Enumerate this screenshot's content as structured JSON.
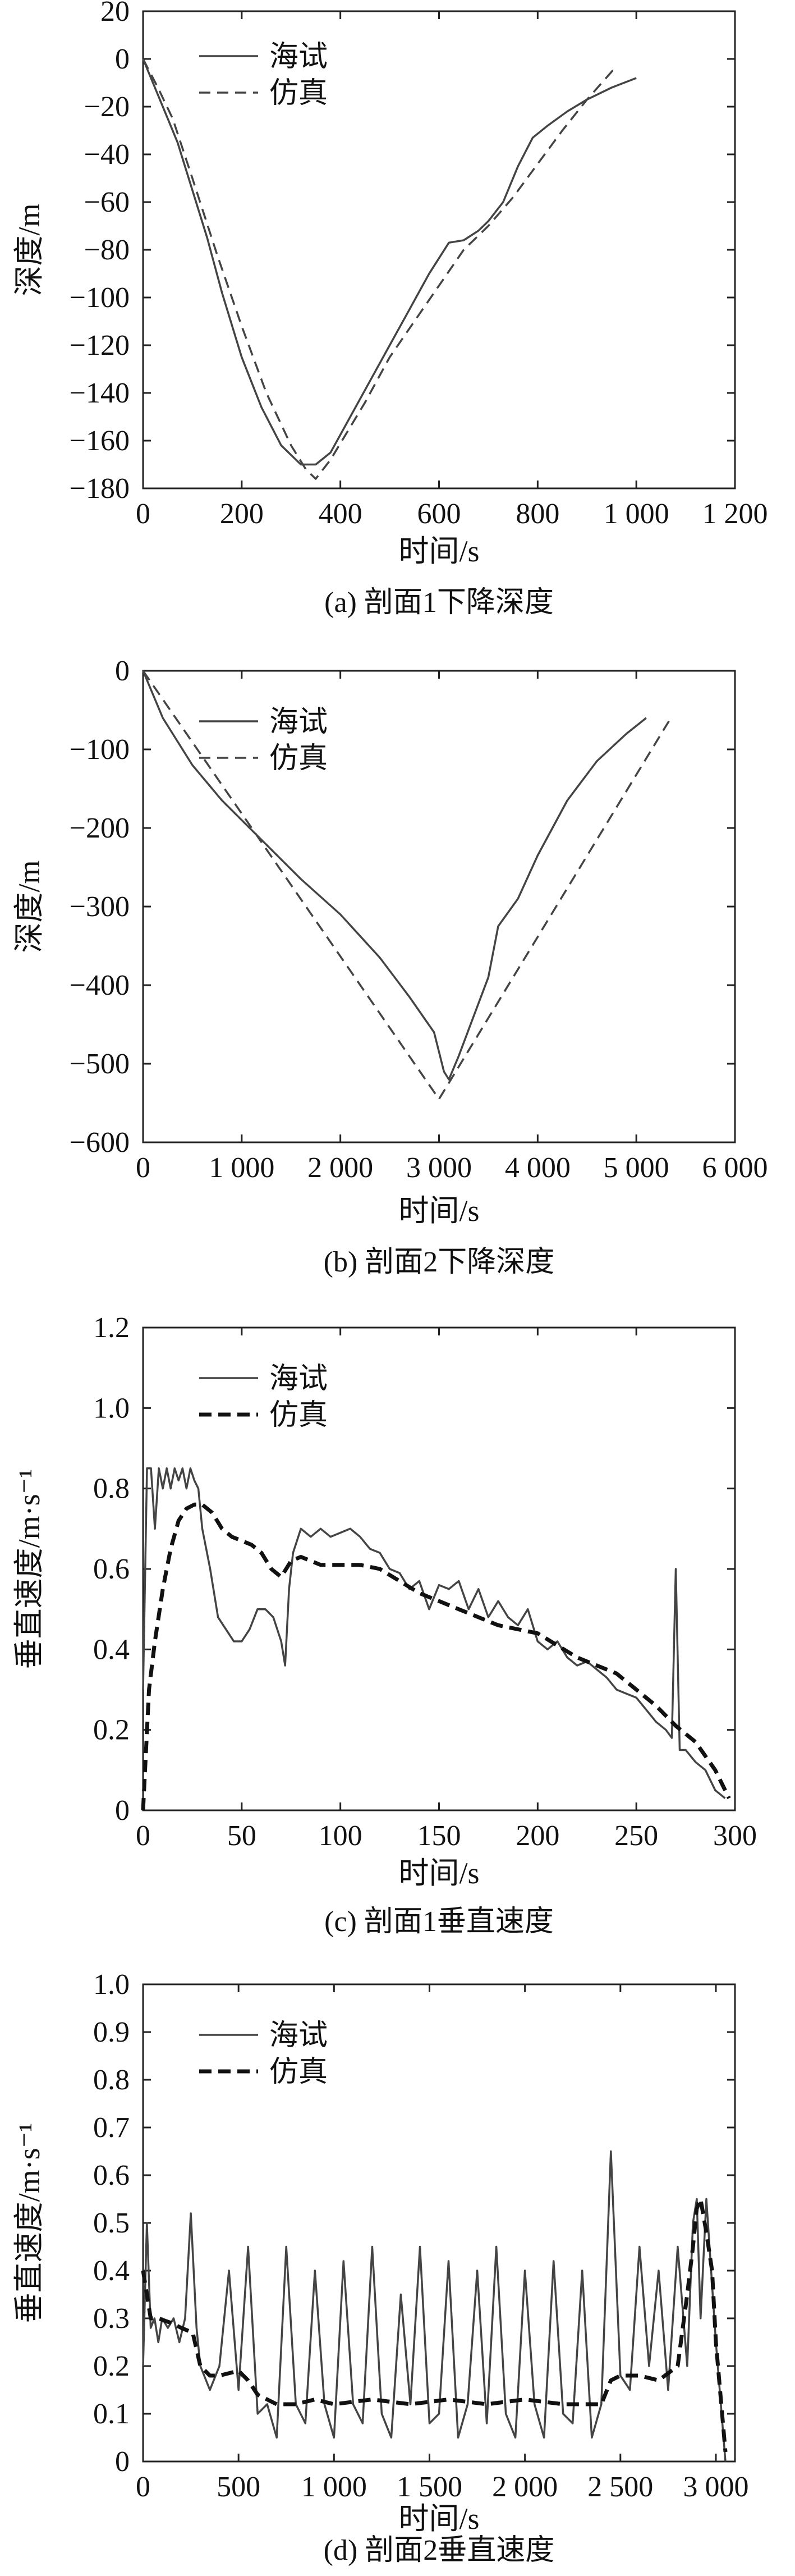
{
  "chart_data": [
    {
      "type": "line",
      "caption": "(a) 剖面1下降深度",
      "xlabel": "时间/s",
      "ylabel": "深度/m",
      "xlim": [
        0,
        1200
      ],
      "ylim": [
        -180,
        20
      ],
      "xticks": [
        0,
        200,
        400,
        600,
        800,
        1000,
        1200
      ],
      "xtick_labels": [
        "0",
        "200",
        "400",
        "600",
        "800",
        "1 000",
        "1 200"
      ],
      "yticks": [
        20,
        0,
        -20,
        -40,
        -60,
        -80,
        -100,
        -120,
        -140,
        -160,
        -180
      ],
      "ytick_labels": [
        "20",
        "0",
        "−20",
        "−40",
        "−60",
        "−80",
        "−100",
        "−120",
        "−140",
        "−160",
        "−180"
      ],
      "legend_position": "top-left",
      "series": [
        {
          "name": "海试",
          "style": "solid",
          "x": [
            0,
            10,
            30,
            50,
            70,
            100,
            130,
            160,
            200,
            240,
            280,
            320,
            350,
            380,
            420,
            460,
            500,
            540,
            580,
            620,
            650,
            680,
            700,
            730,
            760,
            790,
            820,
            860,
            900,
            950,
            1000
          ],
          "y": [
            0,
            -5,
            -15,
            -25,
            -35,
            -55,
            -75,
            -98,
            -125,
            -146,
            -162,
            -170,
            -170,
            -165,
            -150,
            -135,
            -120,
            -105,
            -90,
            -77,
            -76,
            -72,
            -68,
            -60,
            -45,
            -33,
            -28,
            -22,
            -17,
            -12,
            -8
          ]
        },
        {
          "name": "仿真",
          "style": "dashed",
          "x": [
            0,
            30,
            60,
            100,
            150,
            200,
            250,
            300,
            330,
            350,
            380,
            450,
            500,
            550,
            600,
            650,
            700,
            750,
            800,
            850,
            900,
            960
          ],
          "y": [
            0,
            -12,
            -25,
            -50,
            -82,
            -112,
            -140,
            -162,
            -172,
            -176,
            -168,
            -144,
            -125,
            -110,
            -95,
            -80,
            -70,
            -58,
            -44,
            -30,
            -17,
            -3
          ]
        }
      ]
    },
    {
      "type": "line",
      "caption": "(b) 剖面2下降深度",
      "xlabel": "时间/s",
      "ylabel": "深度/m",
      "xlim": [
        0,
        6000
      ],
      "ylim": [
        -600,
        0
      ],
      "xticks": [
        0,
        1000,
        2000,
        3000,
        4000,
        5000,
        6000
      ],
      "xtick_labels": [
        "0",
        "1 000",
        "2 000",
        "3 000",
        "4 000",
        "5 000",
        "6 000"
      ],
      "yticks": [
        0,
        -100,
        -200,
        -300,
        -400,
        -500,
        -600
      ],
      "ytick_labels": [
        "0",
        "−100",
        "−200",
        "−300",
        "−400",
        "−500",
        "−600"
      ],
      "legend_position": "top-left",
      "series": [
        {
          "name": "海试",
          "style": "solid",
          "x": [
            0,
            200,
            500,
            800,
            1200,
            1600,
            2000,
            2400,
            2700,
            2950,
            3050,
            3100,
            3200,
            3350,
            3500,
            3600,
            3800,
            4000,
            4300,
            4600,
            4900,
            5100
          ],
          "y": [
            0,
            -60,
            -120,
            -165,
            -215,
            -265,
            -310,
            -365,
            -415,
            -460,
            -510,
            -520,
            -490,
            -440,
            -390,
            -325,
            -290,
            -235,
            -165,
            -115,
            -80,
            -60
          ]
        },
        {
          "name": "仿真",
          "style": "dashed",
          "x": [
            0,
            3000,
            5350
          ],
          "y": [
            0,
            -545,
            -60
          ]
        }
      ]
    },
    {
      "type": "line",
      "caption": "(c) 剖面1垂直速度",
      "xlabel": "时间/s",
      "ylabel": "垂直速度/m·s⁻¹",
      "xlim": [
        0,
        300
      ],
      "ylim": [
        0,
        1.2
      ],
      "xticks": [
        0,
        50,
        100,
        150,
        200,
        250,
        300
      ],
      "xtick_labels": [
        "0",
        "50",
        "100",
        "150",
        "200",
        "250",
        "300"
      ],
      "yticks": [
        0,
        0.2,
        0.4,
        0.6,
        0.8,
        1.0,
        1.2
      ],
      "ytick_labels": [
        "0",
        "0.2",
        "0.4",
        "0.6",
        "0.8",
        "1.0",
        "1.2"
      ],
      "legend_position": "top-left",
      "series": [
        {
          "name": "海试",
          "style": "solid",
          "x": [
            0,
            2,
            4,
            6,
            8,
            10,
            12,
            14,
            16,
            18,
            20,
            22,
            24,
            26,
            28,
            30,
            34,
            38,
            42,
            46,
            50,
            54,
            58,
            62,
            66,
            70,
            72,
            74,
            76,
            80,
            85,
            90,
            95,
            100,
            105,
            110,
            115,
            120,
            125,
            130,
            135,
            140,
            145,
            150,
            155,
            160,
            165,
            170,
            175,
            180,
            185,
            190,
            195,
            200,
            205,
            210,
            215,
            220,
            225,
            230,
            235,
            240,
            245,
            250,
            255,
            260,
            265,
            268,
            270,
            272,
            275,
            280,
            285,
            290,
            295
          ],
          "y": [
            0.3,
            0.85,
            0.85,
            0.7,
            0.85,
            0.8,
            0.85,
            0.8,
            0.85,
            0.82,
            0.85,
            0.8,
            0.85,
            0.82,
            0.8,
            0.7,
            0.6,
            0.48,
            0.45,
            0.42,
            0.42,
            0.45,
            0.5,
            0.5,
            0.48,
            0.42,
            0.36,
            0.55,
            0.64,
            0.7,
            0.68,
            0.7,
            0.68,
            0.69,
            0.7,
            0.68,
            0.65,
            0.64,
            0.6,
            0.59,
            0.55,
            0.57,
            0.5,
            0.56,
            0.55,
            0.57,
            0.5,
            0.55,
            0.48,
            0.52,
            0.48,
            0.46,
            0.5,
            0.42,
            0.4,
            0.42,
            0.38,
            0.36,
            0.37,
            0.35,
            0.33,
            0.3,
            0.29,
            0.28,
            0.25,
            0.22,
            0.2,
            0.18,
            0.6,
            0.15,
            0.15,
            0.12,
            0.1,
            0.05,
            0.03
          ]
        },
        {
          "name": "仿真",
          "style": "dashed",
          "x": [
            0,
            3,
            6,
            10,
            14,
            18,
            22,
            26,
            30,
            35,
            40,
            45,
            50,
            55,
            60,
            65,
            70,
            75,
            80,
            90,
            100,
            110,
            120,
            130,
            140,
            150,
            160,
            170,
            180,
            190,
            200,
            210,
            220,
            230,
            240,
            250,
            260,
            270,
            280,
            290,
            297
          ],
          "y": [
            0,
            0.3,
            0.42,
            0.55,
            0.65,
            0.72,
            0.75,
            0.76,
            0.76,
            0.74,
            0.7,
            0.68,
            0.67,
            0.66,
            0.64,
            0.6,
            0.58,
            0.62,
            0.63,
            0.61,
            0.61,
            0.61,
            0.6,
            0.57,
            0.54,
            0.52,
            0.5,
            0.48,
            0.46,
            0.45,
            0.44,
            0.41,
            0.38,
            0.36,
            0.34,
            0.3,
            0.26,
            0.21,
            0.17,
            0.1,
            0.03
          ]
        }
      ]
    },
    {
      "type": "line",
      "caption": "(d) 剖面2垂直速度",
      "xlabel": "时间/s",
      "ylabel": "垂直速度/m·s⁻¹",
      "xlim": [
        0,
        3100
      ],
      "ylim": [
        0,
        1.0
      ],
      "xticks": [
        0,
        500,
        1000,
        1500,
        2000,
        2500,
        3000
      ],
      "xtick_labels": [
        "0",
        "500",
        "1 000",
        "1 500",
        "2 000",
        "2 500",
        "3 000"
      ],
      "yticks": [
        0,
        0.1,
        0.2,
        0.3,
        0.4,
        0.5,
        0.6,
        0.7,
        0.8,
        0.9,
        1.0
      ],
      "ytick_labels": [
        "0",
        "0.1",
        "0.2",
        "0.3",
        "0.4",
        "0.5",
        "0.6",
        "0.7",
        "0.8",
        "0.9",
        "1.0"
      ],
      "legend_position": "top-left",
      "series": [
        {
          "name": "海试",
          "style": "solid",
          "x": [
            0,
            20,
            40,
            60,
            80,
            100,
            130,
            160,
            190,
            220,
            250,
            280,
            300,
            350,
            400,
            450,
            500,
            550,
            600,
            650,
            700,
            750,
            800,
            850,
            900,
            950,
            1000,
            1050,
            1100,
            1150,
            1200,
            1250,
            1300,
            1350,
            1400,
            1450,
            1500,
            1550,
            1600,
            1650,
            1700,
            1750,
            1800,
            1850,
            1900,
            1950,
            2000,
            2050,
            2100,
            2150,
            2200,
            2250,
            2300,
            2350,
            2400,
            2450,
            2500,
            2550,
            2600,
            2650,
            2700,
            2750,
            2800,
            2850,
            2880,
            2900,
            2920,
            2950,
            3000,
            3050
          ],
          "y": [
            0.2,
            0.5,
            0.28,
            0.3,
            0.25,
            0.3,
            0.28,
            0.3,
            0.25,
            0.3,
            0.52,
            0.28,
            0.2,
            0.15,
            0.2,
            0.4,
            0.15,
            0.45,
            0.1,
            0.12,
            0.05,
            0.45,
            0.12,
            0.08,
            0.4,
            0.12,
            0.05,
            0.42,
            0.12,
            0.08,
            0.45,
            0.1,
            0.05,
            0.35,
            0.12,
            0.45,
            0.08,
            0.1,
            0.42,
            0.05,
            0.12,
            0.4,
            0.08,
            0.45,
            0.1,
            0.05,
            0.4,
            0.12,
            0.05,
            0.42,
            0.1,
            0.08,
            0.4,
            0.05,
            0.12,
            0.65,
            0.18,
            0.15,
            0.45,
            0.2,
            0.4,
            0.15,
            0.45,
            0.2,
            0.5,
            0.55,
            0.3,
            0.55,
            0.25,
            0.0
          ]
        },
        {
          "name": "仿真",
          "style": "dashed",
          "x": [
            0,
            40,
            80,
            150,
            200,
            260,
            300,
            350,
            400,
            500,
            550,
            600,
            700,
            800,
            900,
            1000,
            1200,
            1400,
            1600,
            1800,
            2000,
            2200,
            2300,
            2350,
            2400,
            2450,
            2500,
            2600,
            2700,
            2800,
            2850,
            2880,
            2900,
            2920,
            2950,
            2980,
            3000,
            3050
          ],
          "y": [
            0.4,
            0.3,
            0.3,
            0.29,
            0.28,
            0.27,
            0.2,
            0.18,
            0.18,
            0.19,
            0.17,
            0.14,
            0.12,
            0.12,
            0.13,
            0.12,
            0.13,
            0.12,
            0.13,
            0.12,
            0.13,
            0.12,
            0.12,
            0.12,
            0.12,
            0.17,
            0.18,
            0.18,
            0.17,
            0.2,
            0.35,
            0.45,
            0.53,
            0.55,
            0.48,
            0.4,
            0.25,
            0.02
          ]
        }
      ]
    }
  ]
}
